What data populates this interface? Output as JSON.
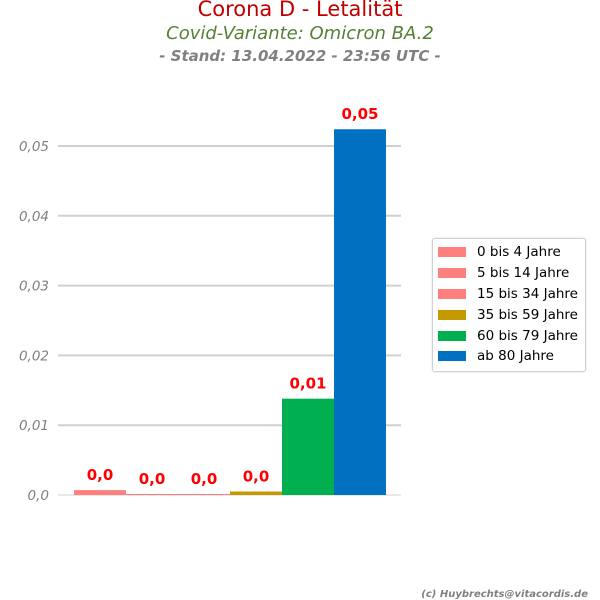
{
  "title": "Corona D - Letalität",
  "subtitle": "Covid-Variante: Omicron BA.2",
  "stand": "- Stand: 13.04.2022 - 23:56 UTC -",
  "credit": "(c) Huybrechts@vitacordis.de",
  "chart_data": {
    "type": "bar",
    "title": "Corona D - Letalität",
    "categories": [
      "0 bis 4 Jahre",
      "5 bis 14 Jahre",
      "15 bis 34 Jahre",
      "35 bis 59 Jahre",
      "60 bis 79 Jahre",
      "ab 80 Jahre"
    ],
    "values": [
      0.0007,
      0.0001,
      0.0001,
      0.0005,
      0.0138,
      0.0524
    ],
    "data_labels": [
      "0,0",
      "0,0",
      "0,0",
      "0,0",
      "0,01",
      "0,05"
    ],
    "colors": [
      "#ff7f7f",
      "#ff7f7f",
      "#ff7f7f",
      "#c49a00",
      "#00b050",
      "#0070c0"
    ],
    "ylim": [
      0,
      0.055
    ],
    "yticks": [
      0,
      0.01,
      0.02,
      0.03,
      0.04,
      0.05
    ],
    "ytick_labels": [
      "0,0",
      "0,01",
      "0,02",
      "0,03",
      "0,04",
      "0,05"
    ],
    "grid": true,
    "legend_position": "right",
    "xlabel": "",
    "ylabel": ""
  }
}
